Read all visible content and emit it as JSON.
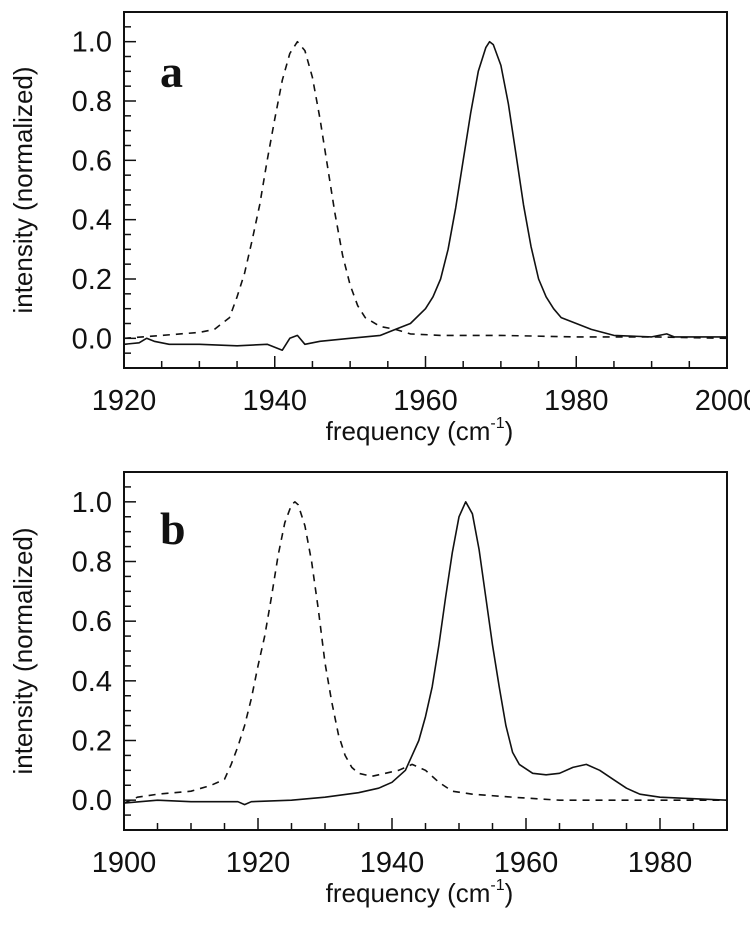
{
  "chart_data": [
    {
      "type": "line",
      "panel_label": "a",
      "xlabel": "frequency (cm",
      "xlabel_sup": "-1",
      "xlabel_end": ")",
      "ylabel": "intensity (normalized)",
      "xlim": [
        1920,
        2000
      ],
      "ylim": [
        -0.1,
        1.1
      ],
      "xticks": [
        1920,
        1940,
        1960,
        1980,
        2000
      ],
      "yticks": [
        "0.0",
        "0.2",
        "0.4",
        "0.6",
        "0.8",
        "1.0"
      ],
      "grid": false,
      "series": [
        {
          "style": "dashed",
          "points": [
            [
              1920,
              0.0
            ],
            [
              1925,
              0.01
            ],
            [
              1930,
              0.02
            ],
            [
              1932,
              0.03
            ],
            [
              1934,
              0.07
            ],
            [
              1935,
              0.14
            ],
            [
              1936,
              0.22
            ],
            [
              1937,
              0.33
            ],
            [
              1938,
              0.45
            ],
            [
              1939,
              0.6
            ],
            [
              1940,
              0.74
            ],
            [
              1941,
              0.87
            ],
            [
              1942,
              0.96
            ],
            [
              1943,
              1.0
            ],
            [
              1944,
              0.97
            ],
            [
              1945,
              0.88
            ],
            [
              1946,
              0.74
            ],
            [
              1947,
              0.58
            ],
            [
              1948,
              0.42
            ],
            [
              1949,
              0.28
            ],
            [
              1950,
              0.18
            ],
            [
              1951,
              0.11
            ],
            [
              1952,
              0.07
            ],
            [
              1954,
              0.04
            ],
            [
              1956,
              0.03
            ],
            [
              1958,
              0.015
            ],
            [
              1962,
              0.01
            ],
            [
              1970,
              0.01
            ],
            [
              1980,
              0.005
            ],
            [
              1990,
              0.005
            ],
            [
              2000,
              0.0
            ]
          ]
        },
        {
          "style": "solid",
          "points": [
            [
              1920,
              -0.02
            ],
            [
              1922,
              -0.015
            ],
            [
              1923,
              0.0
            ],
            [
              1924,
              -0.01
            ],
            [
              1926,
              -0.02
            ],
            [
              1930,
              -0.02
            ],
            [
              1935,
              -0.025
            ],
            [
              1939,
              -0.02
            ],
            [
              1941,
              -0.04
            ],
            [
              1942,
              0.0
            ],
            [
              1943,
              0.01
            ],
            [
              1944,
              -0.02
            ],
            [
              1946,
              -0.01
            ],
            [
              1950,
              0.0
            ],
            [
              1954,
              0.01
            ],
            [
              1956,
              0.03
            ],
            [
              1958,
              0.05
            ],
            [
              1960,
              0.1
            ],
            [
              1961,
              0.14
            ],
            [
              1962,
              0.2
            ],
            [
              1963,
              0.3
            ],
            [
              1964,
              0.44
            ],
            [
              1965,
              0.6
            ],
            [
              1966,
              0.76
            ],
            [
              1967,
              0.9
            ],
            [
              1968,
              0.98
            ],
            [
              1968.5,
              1.0
            ],
            [
              1969,
              0.99
            ],
            [
              1970,
              0.92
            ],
            [
              1971,
              0.79
            ],
            [
              1972,
              0.62
            ],
            [
              1973,
              0.45
            ],
            [
              1974,
              0.31
            ],
            [
              1975,
              0.2
            ],
            [
              1976,
              0.14
            ],
            [
              1977,
              0.1
            ],
            [
              1978,
              0.07
            ],
            [
              1980,
              0.05
            ],
            [
              1982,
              0.03
            ],
            [
              1985,
              0.01
            ],
            [
              1990,
              0.005
            ],
            [
              1992,
              0.015
            ],
            [
              1993,
              0.005
            ],
            [
              2000,
              0.005
            ]
          ]
        }
      ]
    },
    {
      "type": "line",
      "panel_label": "b",
      "xlabel": "frequency (cm",
      "xlabel_sup": "-1",
      "xlabel_end": ")",
      "ylabel": "intensity (normalized)",
      "xlim": [
        1900,
        1990
      ],
      "ylim": [
        -0.1,
        1.1
      ],
      "xticks": [
        1900,
        1920,
        1940,
        1960,
        1980
      ],
      "yticks": [
        "0.0",
        "0.2",
        "0.4",
        "0.6",
        "0.8",
        "1.0"
      ],
      "grid": false,
      "series": [
        {
          "style": "dashed",
          "points": [
            [
              1900,
              -0.01
            ],
            [
              1902,
              0.01
            ],
            [
              1905,
              0.02
            ],
            [
              1910,
              0.03
            ],
            [
              1913,
              0.05
            ],
            [
              1915,
              0.07
            ],
            [
              1916,
              0.12
            ],
            [
              1917,
              0.18
            ],
            [
              1918,
              0.25
            ],
            [
              1919,
              0.34
            ],
            [
              1920,
              0.45
            ],
            [
              1921,
              0.55
            ],
            [
              1922,
              0.68
            ],
            [
              1923,
              0.82
            ],
            [
              1924,
              0.93
            ],
            [
              1925,
              0.99
            ],
            [
              1925.5,
              1.0
            ],
            [
              1926,
              0.99
            ],
            [
              1927,
              0.92
            ],
            [
              1928,
              0.8
            ],
            [
              1929,
              0.64
            ],
            [
              1930,
              0.46
            ],
            [
              1931,
              0.33
            ],
            [
              1932,
              0.22
            ],
            [
              1933,
              0.15
            ],
            [
              1934,
              0.11
            ],
            [
              1935,
              0.09
            ],
            [
              1937,
              0.08
            ],
            [
              1939,
              0.09
            ],
            [
              1941,
              0.1
            ],
            [
              1943,
              0.12
            ],
            [
              1945,
              0.1
            ],
            [
              1947,
              0.06
            ],
            [
              1949,
              0.03
            ],
            [
              1952,
              0.02
            ],
            [
              1958,
              0.01
            ],
            [
              1965,
              0.0
            ],
            [
              1975,
              0.0
            ],
            [
              1990,
              0.0
            ]
          ]
        },
        {
          "style": "solid",
          "points": [
            [
              1900,
              -0.01
            ],
            [
              1905,
              0.0
            ],
            [
              1910,
              -0.005
            ],
            [
              1917,
              -0.005
            ],
            [
              1918,
              -0.015
            ],
            [
              1919,
              -0.005
            ],
            [
              1925,
              0.0
            ],
            [
              1930,
              0.01
            ],
            [
              1935,
              0.025
            ],
            [
              1938,
              0.04
            ],
            [
              1940,
              0.06
            ],
            [
              1942,
              0.1
            ],
            [
              1943,
              0.15
            ],
            [
              1944,
              0.2
            ],
            [
              1945,
              0.28
            ],
            [
              1946,
              0.38
            ],
            [
              1947,
              0.52
            ],
            [
              1948,
              0.68
            ],
            [
              1949,
              0.83
            ],
            [
              1950,
              0.95
            ],
            [
              1951,
              1.0
            ],
            [
              1952,
              0.96
            ],
            [
              1953,
              0.84
            ],
            [
              1954,
              0.68
            ],
            [
              1955,
              0.52
            ],
            [
              1956,
              0.38
            ],
            [
              1957,
              0.25
            ],
            [
              1958,
              0.16
            ],
            [
              1959,
              0.12
            ],
            [
              1961,
              0.09
            ],
            [
              1963,
              0.085
            ],
            [
              1965,
              0.09
            ],
            [
              1967,
              0.11
            ],
            [
              1969,
              0.12
            ],
            [
              1971,
              0.1
            ],
            [
              1973,
              0.07
            ],
            [
              1975,
              0.04
            ],
            [
              1977,
              0.02
            ],
            [
              1980,
              0.01
            ],
            [
              1985,
              0.005
            ],
            [
              1990,
              0.0
            ]
          ]
        }
      ]
    }
  ]
}
